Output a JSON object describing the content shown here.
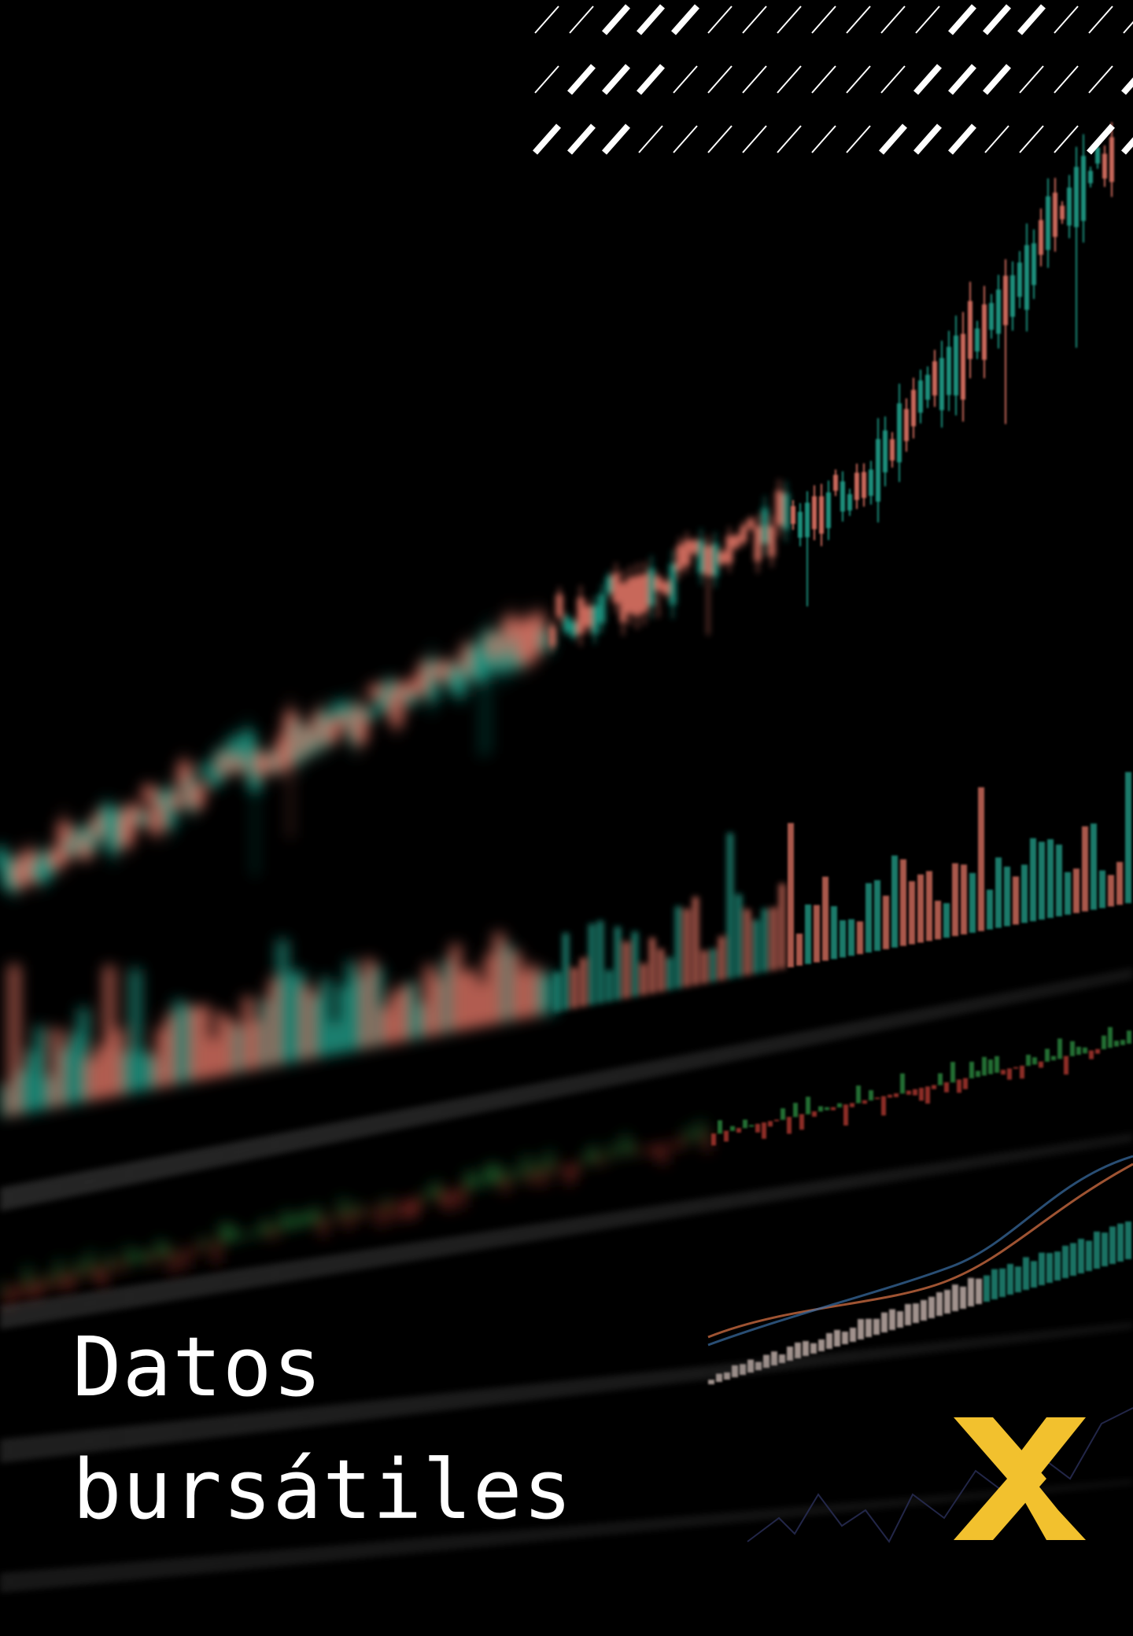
{
  "title_lines": [
    "Datos",
    "bursátiles"
  ]
}
